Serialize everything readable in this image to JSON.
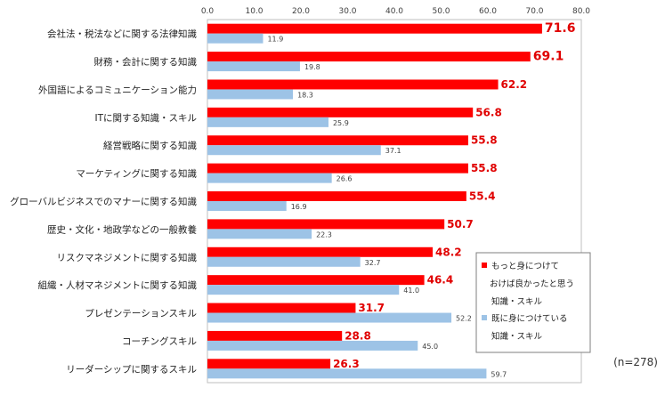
{
  "chart_data": {
    "type": "bar",
    "orientation": "horizontal",
    "categories": [
      "会社法・税法などに関する法律知識",
      "財務・会計に関する知識",
      "外国語によるコミュニケーション能力",
      "ITに関する知識・スキル",
      "経営戦略に関する知識",
      "マーケティングに関する知識",
      "グローバルビジネスでのマナーに関する知識",
      "歴史・文化・地政学などの一般教養",
      "リスクマネジメントに関する知識",
      "組織・人材マネジメントに関する知識",
      "プレゼンテーションスキル",
      "コーチングスキル",
      "リーダーシップに関するスキル"
    ],
    "series": [
      {
        "name": "もっと身につけておけば良かったと思う知識・スキル",
        "color": "#ff0000",
        "values": [
          71.6,
          69.1,
          62.2,
          56.8,
          55.8,
          55.8,
          55.4,
          50.7,
          48.2,
          46.4,
          31.7,
          28.8,
          26.3
        ]
      },
      {
        "name": "既に身につけている知識・スキル",
        "color": "#9dc3e6",
        "values": [
          11.9,
          19.8,
          18.3,
          25.9,
          37.1,
          26.6,
          16.9,
          22.3,
          32.7,
          41.0,
          52.2,
          45.0,
          59.7
        ]
      }
    ],
    "xlim": [
      0,
      80
    ],
    "ticks": [
      "0.0",
      "10.0",
      "20.0",
      "30.0",
      "40.0",
      "50.0",
      "60.0",
      "70.0",
      "80.0"
    ],
    "legend_position": "bottom-right",
    "legend_lines": [
      [
        "もっと身につけて",
        "おけば良かったと思う",
        "知識・スキル"
      ],
      [
        "既に身につけている",
        "知識・スキル"
      ]
    ],
    "note": "(n=278)"
  }
}
